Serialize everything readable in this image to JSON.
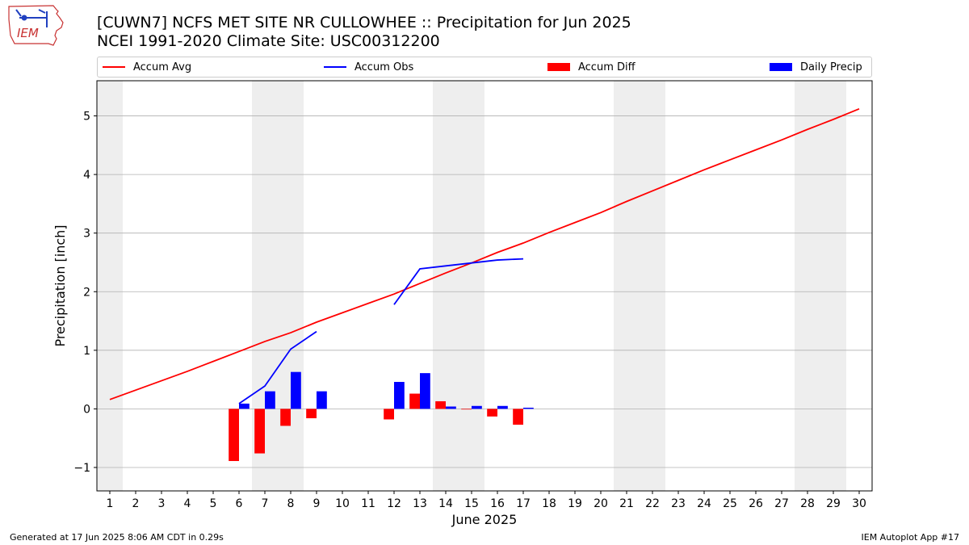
{
  "logo_text": "IEM",
  "title_line1": "[CUWN7] NCFS MET SITE NR CULLOWHEE :: Precipitation for Jun 2025",
  "title_line2": "NCEI 1991-2020 Climate Site: USC00312200",
  "footer_left": "Generated at 17 Jun 2025 8:06 AM CDT in 0.29s",
  "footer_right": "IEM Autoplot App #17",
  "colors": {
    "avg": "#ff0000",
    "obs": "#0000ff",
    "diff": "#ff0000",
    "daily": "#0000ff",
    "weekend": "#eeeeee",
    "grid": "#b0b0b0"
  },
  "chart_data": {
    "type": "bar",
    "title": "[CUWN7] NCFS MET SITE NR CULLOWHEE :: Precipitation for Jun 2025",
    "subtitle": "NCEI 1991-2020 Climate Site: USC00312200",
    "xlabel": "June 2025",
    "ylabel": "Precipitation [inch]",
    "ylim": [
      -1.4,
      5.6
    ],
    "xlim": [
      0.5,
      30.5
    ],
    "x_ticks": [
      1,
      2,
      3,
      4,
      5,
      6,
      7,
      8,
      9,
      10,
      11,
      12,
      13,
      14,
      15,
      16,
      17,
      18,
      19,
      20,
      21,
      22,
      23,
      24,
      25,
      26,
      27,
      28,
      29,
      30
    ],
    "y_ticks": [
      -1,
      0,
      1,
      2,
      3,
      4,
      5
    ],
    "y_tick_labels": [
      "−1",
      "0",
      "1",
      "2",
      "3",
      "4",
      "5"
    ],
    "grid": "horizontal",
    "legend_position": "top",
    "shaded_days": [
      1,
      7,
      8,
      14,
      15,
      21,
      22,
      28,
      29
    ],
    "series": [
      {
        "name": "Accum Avg",
        "kind": "line",
        "x": [
          1,
          2,
          3,
          4,
          5,
          6,
          7,
          8,
          9,
          10,
          11,
          12,
          13,
          14,
          15,
          16,
          17,
          18,
          19,
          20,
          21,
          22,
          23,
          24,
          25,
          26,
          27,
          28,
          29,
          30
        ],
        "values": [
          0.16,
          0.32,
          0.48,
          0.64,
          0.81,
          0.98,
          1.15,
          1.3,
          1.48,
          1.64,
          1.8,
          1.96,
          2.14,
          2.32,
          2.49,
          2.67,
          2.83,
          3.01,
          3.18,
          3.35,
          3.54,
          3.72,
          3.9,
          4.08,
          4.25,
          4.42,
          4.59,
          4.77,
          4.94,
          5.12
        ]
      },
      {
        "name": "Accum Obs",
        "kind": "line",
        "segments": [
          {
            "x": [
              6,
              7,
              8,
              9
            ],
            "values": [
              0.09,
              0.39,
              1.02,
              1.32
            ]
          },
          {
            "x": [
              12,
              13,
              14,
              15,
              16,
              17
            ],
            "values": [
              1.78,
              2.39,
              2.44,
              2.49,
              2.54,
              2.56
            ]
          }
        ]
      },
      {
        "name": "Accum Diff",
        "kind": "bar",
        "x": [
          6,
          7,
          8,
          9,
          12,
          13,
          14,
          15,
          16,
          17
        ],
        "values": [
          -0.89,
          -0.76,
          -0.29,
          -0.16,
          -0.18,
          0.26,
          0.13,
          -0.01,
          -0.13,
          -0.27
        ]
      },
      {
        "name": "Daily Precip",
        "kind": "bar",
        "x": [
          6,
          7,
          8,
          9,
          12,
          13,
          14,
          15,
          16,
          17
        ],
        "values": [
          0.09,
          0.3,
          0.63,
          0.3,
          0.46,
          0.61,
          0.04,
          0.05,
          0.05,
          0.02
        ]
      }
    ]
  }
}
